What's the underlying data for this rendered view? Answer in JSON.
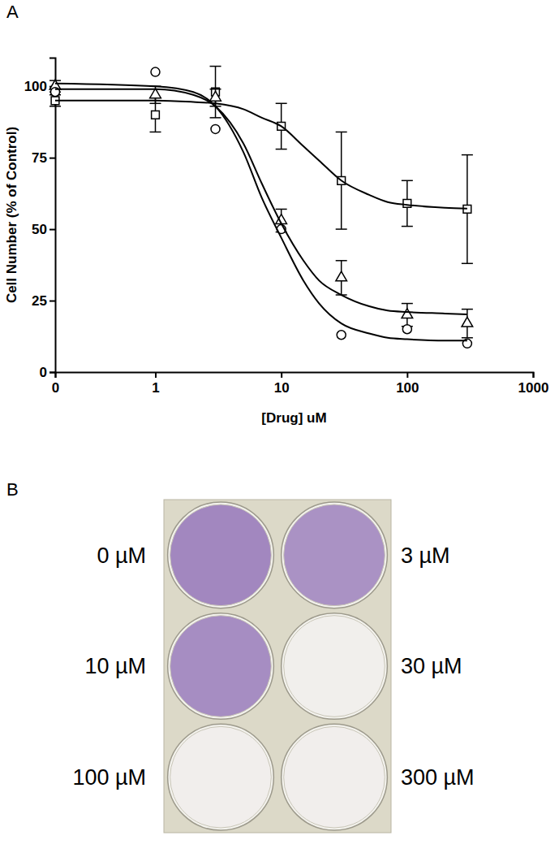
{
  "chart_data": [
    {
      "type": "scatter",
      "title": "A",
      "x_label": "[Drug] uM",
      "y_label": "Cell Number (% of Control)",
      "log": "x",
      "xlim": [
        0.16,
        1000
      ],
      "xticks": [
        {
          "value": 0.16,
          "label": "0"
        },
        1,
        10,
        100,
        1000
      ],
      "ylim": [
        0,
        110
      ],
      "yticks": [
        0,
        25,
        50,
        75,
        100
      ],
      "series": [
        {
          "type": "scatter",
          "marker": "square",
          "color": "#000000",
          "x": [
            0.16,
            1,
            3,
            10,
            30,
            100,
            300
          ],
          "values": [
            95,
            90,
            98,
            86,
            67,
            59,
            57
          ],
          "errors": [
            2,
            6,
            9,
            8,
            17,
            8,
            19
          ]
        },
        {
          "type": "scatter",
          "marker": "triangle",
          "color": "#000000",
          "x": [
            0.16,
            1,
            3,
            10,
            30,
            100,
            300
          ],
          "values": [
            100,
            97,
            96,
            53,
            33,
            20,
            17
          ],
          "errors": [
            2,
            3,
            3,
            4,
            6,
            4,
            5
          ]
        },
        {
          "type": "scatter",
          "marker": "circle",
          "color": "#000000",
          "x": [
            0.16,
            1,
            3,
            10,
            30,
            100,
            300
          ],
          "values": [
            98,
            105,
            85,
            50,
            13,
            15,
            10
          ]
        },
        {
          "type": "line",
          "line_style": "solid",
          "color": "#000000",
          "x": [
            0.16,
            1,
            2,
            3,
            5,
            7,
            10,
            15,
            20,
            30,
            50,
            70,
            100,
            200,
            300
          ],
          "values": [
            95,
            95,
            94.5,
            94,
            92,
            89,
            86,
            79,
            74,
            67,
            62,
            59.5,
            58.5,
            57.5,
            57.2
          ]
        },
        {
          "type": "line",
          "line_style": "solid",
          "color": "#000000",
          "x": [
            0.16,
            1,
            2,
            3,
            5,
            7,
            10,
            15,
            20,
            30,
            50,
            70,
            100,
            200,
            300
          ],
          "values": [
            99,
            99,
            97,
            93,
            80,
            66,
            52,
            39,
            32,
            27,
            23,
            21.5,
            21,
            20.5,
            20.2
          ]
        },
        {
          "type": "line",
          "line_style": "solid",
          "color": "#000000",
          "x": [
            0.16,
            1,
            2,
            3,
            5,
            7,
            10,
            15,
            20,
            30,
            50,
            70,
            100,
            200,
            300
          ],
          "values": [
            101,
            100,
            98,
            93,
            77,
            61,
            47,
            32,
            24,
            17,
            13.5,
            12,
            11.5,
            11,
            11
          ]
        }
      ]
    },
    {
      "type": "plate",
      "title": "B",
      "categories": [
        "0 µM",
        "3 µM",
        "10 µM",
        "30 µM",
        "100 µM",
        "300 µM"
      ],
      "values": [
        100,
        90,
        95,
        3,
        4,
        4
      ],
      "color": "#6b3fa0"
    }
  ]
}
